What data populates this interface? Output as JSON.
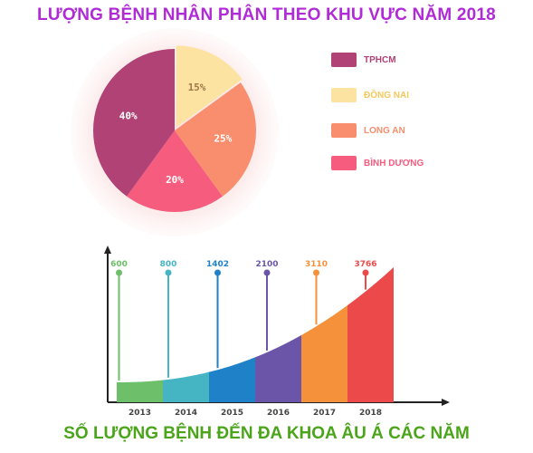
{
  "title": "LƯỢNG BỆNH NHÂN PHÂN THEO KHU VỰC NĂM 2018",
  "footer_title": "SỐ LƯỢNG BỆNH ĐẾN ĐA KHOA ÂU Á CÁC NĂM",
  "chart_data": [
    {
      "type": "pie",
      "title": "LƯỢNG BỆNH NHÂN PHÂN THEO KHU VỰC NĂM 2018",
      "legend_position": "right",
      "slices": [
        {
          "name": "TPHCM",
          "value": 40,
          "label": "40%",
          "color": "#b04275"
        },
        {
          "name": "ĐỒNG NAI",
          "value": 15,
          "label": "15%",
          "color": "#fde3a1"
        },
        {
          "name": "LONG AN",
          "value": 25,
          "label": "25%",
          "color": "#f98e6e"
        },
        {
          "name": "BÌNH DƯƠNG",
          "value": 20,
          "label": "20%",
          "color": "#f55c7d"
        }
      ],
      "legend_label_colors": [
        "#b04275",
        "#f7c85c",
        "#f98e6e",
        "#f55c7d"
      ]
    },
    {
      "type": "area",
      "title": "SỐ LƯỢNG BỆNH ĐẾN ĐA KHOA ÂU Á CÁC NĂM",
      "categories": [
        "2013",
        "2014",
        "2015",
        "2016",
        "2017",
        "2018"
      ],
      "values": [
        600,
        800,
        1402,
        2100,
        3110,
        3766
      ],
      "value_labels": [
        "600",
        "800",
        "1402",
        "2100",
        "3110",
        "3766"
      ],
      "colors": [
        "#6ebf6a",
        "#45b5c4",
        "#1f82c8",
        "#6b55a8",
        "#f5913a",
        "#ec4a4a"
      ],
      "grid": false
    }
  ]
}
